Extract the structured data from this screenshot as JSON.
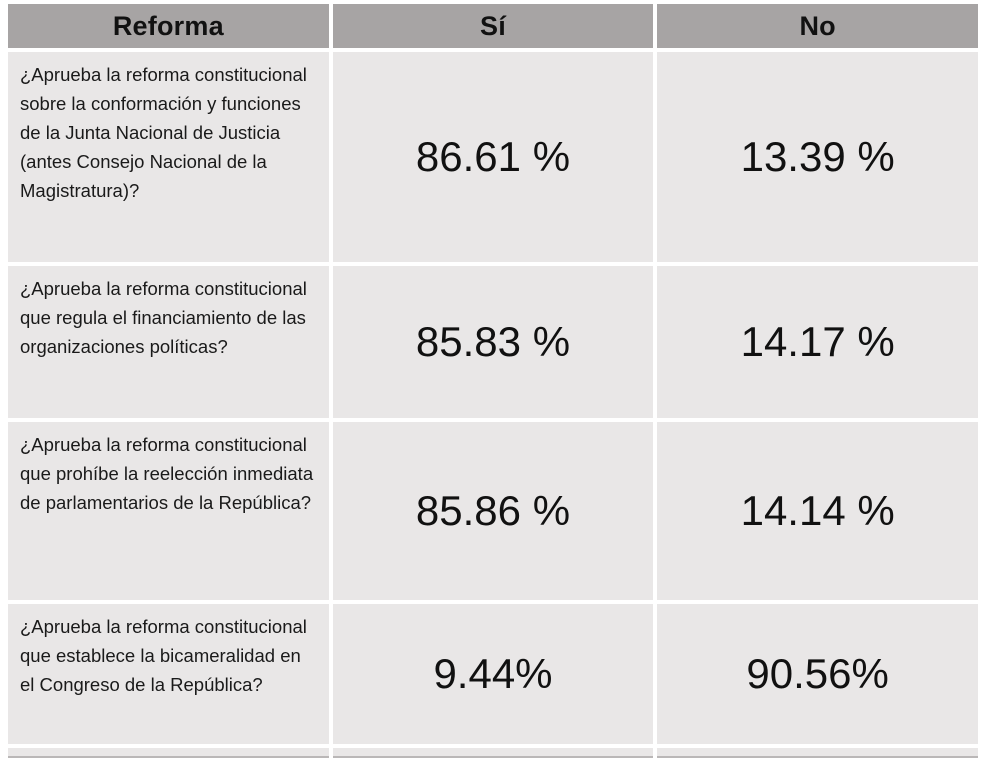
{
  "slide": {
    "background": "#ffffff"
  },
  "table": {
    "header": {
      "reforma": "Reforma",
      "si": "Sí",
      "no": "No"
    },
    "rows": [
      {
        "question": "¿Aprueba la reforma constitucional sobre la conformación y funciones de la Junta Nacional de Justicia (antes Consejo Nacional de la Magistratura)?",
        "si": "86.61 %",
        "no": "13.39 %"
      },
      {
        "question": "¿Aprueba la reforma constitucional que regula el financiamiento de las organizaciones políticas?",
        "si": "85.83 %",
        "no": "14.17 %"
      },
      {
        "question": "¿Aprueba la reforma constitucional que prohíbe la reelección inmediata de parlamentarios de la República?",
        "si": "85.86 %",
        "no": "14.14 %"
      },
      {
        "question": "¿Aprueba la reforma constitucional que establece la bicameralidad en el Congreso de la República?",
        "si": "9.44%",
        "no": "90.56%"
      }
    ],
    "colors": {
      "header_bg": "#a7a4a4",
      "cell_bg": "#e9e7e7",
      "gutter": "#ffffff",
      "text": "#111111",
      "bottom_border": "#bab7b7"
    }
  },
  "chart_data": {
    "type": "table",
    "title": "Resultados del referéndum por reforma",
    "columns": [
      "Reforma",
      "Sí",
      "No"
    ],
    "rows": [
      {
        "reforma": "¿Aprueba la reforma constitucional sobre la conformación y funciones de la Junta Nacional de Justicia (antes Consejo Nacional de la Magistratura)?",
        "si_pct": 86.61,
        "no_pct": 13.39
      },
      {
        "reforma": "¿Aprueba la reforma constitucional que regula el financiamiento de las organizaciones políticas?",
        "si_pct": 85.83,
        "no_pct": 14.17
      },
      {
        "reforma": "¿Aprueba la reforma constitucional que prohíbe la reelección inmediata de parlamentarios de la República?",
        "si_pct": 85.86,
        "no_pct": 14.14
      },
      {
        "reforma": "¿Aprueba la reforma constitucional que establece la bicameralidad en el Congreso de la República?",
        "si_pct": 9.44,
        "no_pct": 90.56
      }
    ]
  }
}
